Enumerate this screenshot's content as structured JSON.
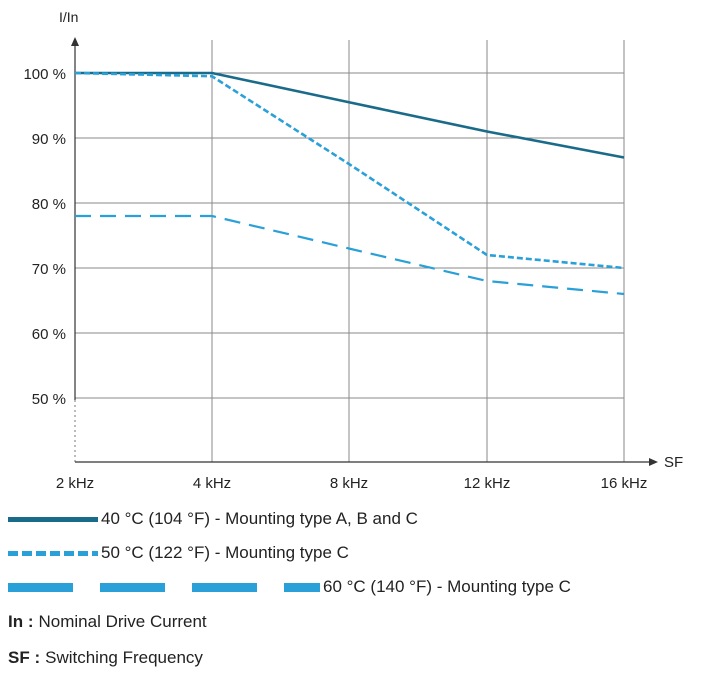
{
  "chart_data": {
    "type": "line",
    "ylabel": "I/In",
    "xlabel": "SF",
    "categories": [
      "2 kHz",
      "4 kHz",
      "8 kHz",
      "12 kHz",
      "16 kHz"
    ],
    "y_ticks": [
      "100 %",
      "90 %",
      "80 %",
      "70 %",
      "60 %",
      "50 %"
    ],
    "y_tick_values": [
      100,
      90,
      80,
      70,
      60,
      50
    ],
    "ylim": [
      40,
      103
    ],
    "grid": true,
    "series": [
      {
        "name": "40 °C (104 °F) - Mounting type A, B and C",
        "values": [
          100,
          100,
          95.5,
          91,
          87
        ],
        "color": "#1a6b8a",
        "style": "solid"
      },
      {
        "name": "50 °C (122 °F) - Mounting type C",
        "values": [
          100,
          99.5,
          86,
          72,
          70
        ],
        "color": "#2aa0d8",
        "style": "dotted"
      },
      {
        "name": "60 °C (140 °F) - Mounting type C",
        "values": [
          78,
          78,
          73,
          68,
          66
        ],
        "color": "#2aa0d8",
        "style": "dashed"
      }
    ]
  },
  "notes": [
    {
      "term": "In :",
      "text": "Nominal Drive Current"
    },
    {
      "term": "SF :",
      "text": "Switching Frequency"
    }
  ]
}
